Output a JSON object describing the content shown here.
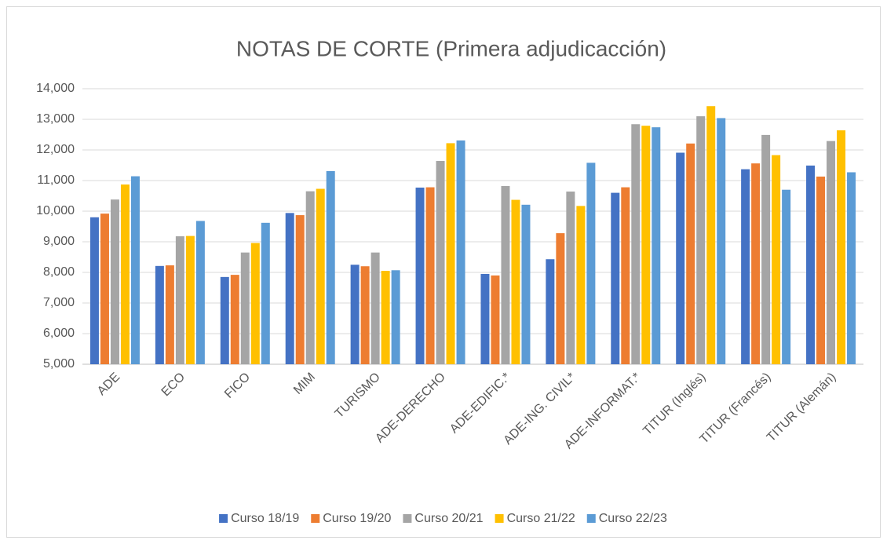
{
  "chart_data": {
    "type": "bar",
    "title": "NOTAS DE CORTE (Primera adjudicacción)",
    "categories": [
      "ADE",
      "ECO",
      "FICO",
      "MIM",
      "TURISMO",
      "ADE-DERECHO",
      "ADE-EDIFIC.*",
      "ADE-ING. CIVIL*",
      "ADE-INFORMAT.*",
      "TITUR (Inglés)",
      "TITUR (Francés)",
      "TITUR (Alemán)"
    ],
    "series": [
      {
        "name": "Curso 18/19",
        "color": "#4472c4",
        "values": [
          9800,
          8210,
          7850,
          9940,
          8250,
          10770,
          7950,
          8430,
          10600,
          11910,
          11370,
          11490
        ]
      },
      {
        "name": "Curso 19/20",
        "color": "#ed7d31",
        "values": [
          9920,
          8230,
          7920,
          9870,
          8200,
          10780,
          7900,
          9280,
          10780,
          12210,
          11560,
          11130
        ]
      },
      {
        "name": "Curso 20/21",
        "color": "#a5a5a5",
        "values": [
          10380,
          9180,
          8650,
          10650,
          8650,
          11640,
          10820,
          10640,
          12840,
          13100,
          12490,
          12290
        ]
      },
      {
        "name": "Curso 21/22",
        "color": "#ffc000",
        "values": [
          10870,
          9190,
          8960,
          10730,
          8050,
          12220,
          10370,
          10170,
          12790,
          13430,
          11830,
          12640
        ]
      },
      {
        "name": "Curso 22/23",
        "color": "#5b9bd5",
        "values": [
          11140,
          9680,
          9620,
          11310,
          8070,
          12310,
          10210,
          11580,
          12740,
          13040,
          10700,
          11270
        ]
      }
    ],
    "ylim": [
      5000,
      14000
    ],
    "yticks": [
      {
        "value": 5000,
        "label": "5,000"
      },
      {
        "value": 6000,
        "label": "6,000"
      },
      {
        "value": 7000,
        "label": "7,000"
      },
      {
        "value": 8000,
        "label": "8,000"
      },
      {
        "value": 9000,
        "label": "9,000"
      },
      {
        "value": 10000,
        "label": "10,000"
      },
      {
        "value": 11000,
        "label": "11,000"
      },
      {
        "value": 12000,
        "label": "12,000"
      },
      {
        "value": 13000,
        "label": "13,000"
      },
      {
        "value": 14000,
        "label": "14,000"
      }
    ],
    "grid": true,
    "legend": "bottom"
  }
}
